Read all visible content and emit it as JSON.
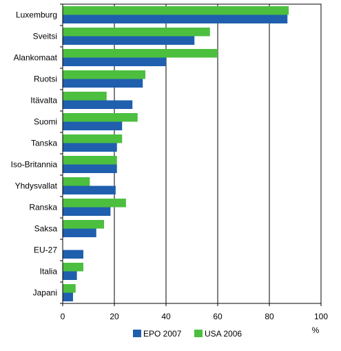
{
  "chart_data": {
    "type": "bar",
    "orientation": "horizontal",
    "categories": [
      "Luxemburg",
      "Sveitsi",
      "Alankomaat",
      "Ruotsi",
      "Itävalta",
      "Suomi",
      "Tanska",
      "Iso-Britannia",
      "Yhdysvallat",
      "Ranska",
      "Saksa",
      "EU-27",
      "Italia",
      "Japani"
    ],
    "series": [
      {
        "name": "EPO 2007",
        "color": "#1f5fae",
        "values": [
          87,
          51,
          40,
          31,
          27,
          23,
          21,
          21,
          20.5,
          18.5,
          13,
          8,
          5.5,
          4
        ]
      },
      {
        "name": "USA 2006",
        "color": "#4cbf3f",
        "values": [
          87.5,
          57,
          60,
          32,
          17,
          29,
          23,
          21,
          10.5,
          24.5,
          16,
          null,
          8,
          5
        ]
      }
    ],
    "xlim": [
      0,
      100
    ],
    "xticks": [
      0,
      20,
      40,
      60,
      80,
      100
    ],
    "xlabel": "%",
    "grid": "vertical",
    "legend": "bottom"
  }
}
